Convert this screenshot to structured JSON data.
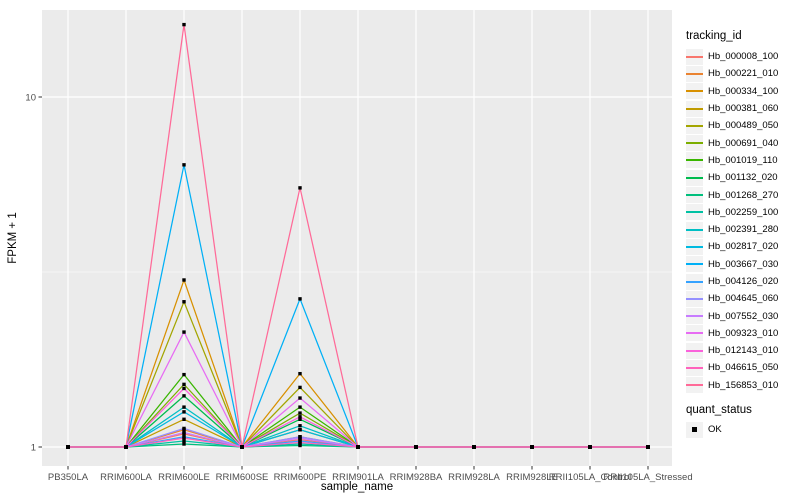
{
  "chart_data": {
    "type": "line",
    "title": "",
    "xlabel": "sample_name",
    "ylabel": "FPKM + 1",
    "y_scale": "log10",
    "ylim": [
      0.88,
      17.8
    ],
    "y_ticks": [
      {
        "label": "1",
        "value": 1
      },
      {
        "label": "10",
        "value": 10
      }
    ],
    "y_minor_ticks": [
      3.1623
    ],
    "grid": true,
    "legend_position": "right",
    "legend_title": "tracking_id",
    "categories": [
      "PB350LA",
      "RRIM600LA",
      "RRIM600LE",
      "RRIM600SE",
      "RRIM600PE",
      "RRIM901LA",
      "RRIM928BA",
      "RRIM928LA",
      "RRIM928LE",
      "RRII105LA_Control",
      "RRII105LA_Stressed"
    ],
    "series": [
      {
        "name": "Hb_000008_100",
        "color": "#F8766D",
        "values": [
          1,
          1,
          1.09,
          1,
          1.05,
          1,
          1,
          1,
          1,
          1,
          1
        ]
      },
      {
        "name": "Hb_000221_010",
        "color": "#EA8331",
        "values": [
          1,
          1,
          1.12,
          1,
          1.07,
          1,
          1,
          1,
          1,
          1,
          1
        ]
      },
      {
        "name": "Hb_000334_100",
        "color": "#D89000",
        "values": [
          1,
          1,
          3.0,
          1,
          1.62,
          1,
          1,
          1,
          1,
          1,
          1
        ]
      },
      {
        "name": "Hb_000381_060",
        "color": "#C09B00",
        "values": [
          1,
          1,
          1.2,
          1,
          1.12,
          1,
          1,
          1,
          1,
          1,
          1
        ]
      },
      {
        "name": "Hb_000489_050",
        "color": "#A3A500",
        "values": [
          1,
          1,
          2.6,
          1,
          1.48,
          1,
          1,
          1,
          1,
          1,
          1
        ]
      },
      {
        "name": "Hb_000691_040",
        "color": "#7CAE00",
        "values": [
          1,
          1,
          1.51,
          1,
          1.25,
          1,
          1,
          1,
          1,
          1,
          1
        ]
      },
      {
        "name": "Hb_001019_110",
        "color": "#39B600",
        "values": [
          1,
          1,
          1.61,
          1,
          1.3,
          1,
          1,
          1,
          1,
          1,
          1
        ]
      },
      {
        "name": "Hb_001132_020",
        "color": "#00BB4E",
        "values": [
          1,
          1,
          1.4,
          1,
          1.2,
          1,
          1,
          1,
          1,
          1,
          1
        ]
      },
      {
        "name": "Hb_001268_270",
        "color": "#00BF7D",
        "values": [
          1,
          1,
          1.02,
          1,
          1.01,
          1,
          1,
          1,
          1,
          1,
          1
        ]
      },
      {
        "name": "Hb_002259_100",
        "color": "#00C1A3",
        "values": [
          1,
          1,
          1.04,
          1,
          1.02,
          1,
          1,
          1,
          1,
          1,
          1
        ]
      },
      {
        "name": "Hb_002391_280",
        "color": "#00BFC4",
        "values": [
          1,
          1,
          1.3,
          1,
          1.15,
          1,
          1,
          1,
          1,
          1,
          1
        ]
      },
      {
        "name": "Hb_002817_020",
        "color": "#00BAE0",
        "values": [
          1,
          1,
          1.26,
          1,
          1.12,
          1,
          1,
          1,
          1,
          1,
          1
        ]
      },
      {
        "name": "Hb_003667_030",
        "color": "#00B0F6",
        "values": [
          1,
          1,
          6.4,
          1,
          2.65,
          1,
          1,
          1,
          1,
          1,
          1
        ]
      },
      {
        "name": "Hb_004126_020",
        "color": "#35A2FF",
        "values": [
          1,
          1,
          1.07,
          1,
          1.04,
          1,
          1,
          1,
          1,
          1,
          1
        ]
      },
      {
        "name": "Hb_004645_060",
        "color": "#9590FF",
        "values": [
          1,
          1,
          1.13,
          1,
          1.07,
          1,
          1,
          1,
          1,
          1,
          1
        ]
      },
      {
        "name": "Hb_007552_030",
        "color": "#C77CFF",
        "values": [
          1,
          1,
          1.1,
          1,
          1.06,
          1,
          1,
          1,
          1,
          1,
          1
        ]
      },
      {
        "name": "Hb_009323_010",
        "color": "#E76BF3",
        "values": [
          1,
          1,
          2.13,
          1,
          1.38,
          1,
          1,
          1,
          1,
          1,
          1
        ]
      },
      {
        "name": "Hb_012143_010",
        "color": "#FA62DB",
        "values": [
          1,
          1,
          1.47,
          1,
          1.22,
          1,
          1,
          1,
          1,
          1,
          1
        ]
      },
      {
        "name": "Hb_046615_050",
        "color": "#FF62BC",
        "values": [
          1,
          1,
          1.06,
          1,
          1.03,
          1,
          1,
          1,
          1,
          1,
          1
        ]
      },
      {
        "name": "Hb_156853_010",
        "color": "#FF6A98",
        "values": [
          1,
          1,
          16.1,
          1,
          5.5,
          1,
          1,
          1,
          1,
          1,
          1
        ]
      }
    ],
    "legend2_title": "quant_status",
    "legend2_items": [
      {
        "label": "OK",
        "shape": "square",
        "color": "#000000"
      }
    ],
    "colors": {
      "panel_bg": "#EBEBEB",
      "grid": "#FFFFFF",
      "tick_text": "#4D4D4D",
      "tick_mark": "#333333",
      "point": "#000000",
      "legend_key_bg": "#F2F2F2"
    }
  }
}
